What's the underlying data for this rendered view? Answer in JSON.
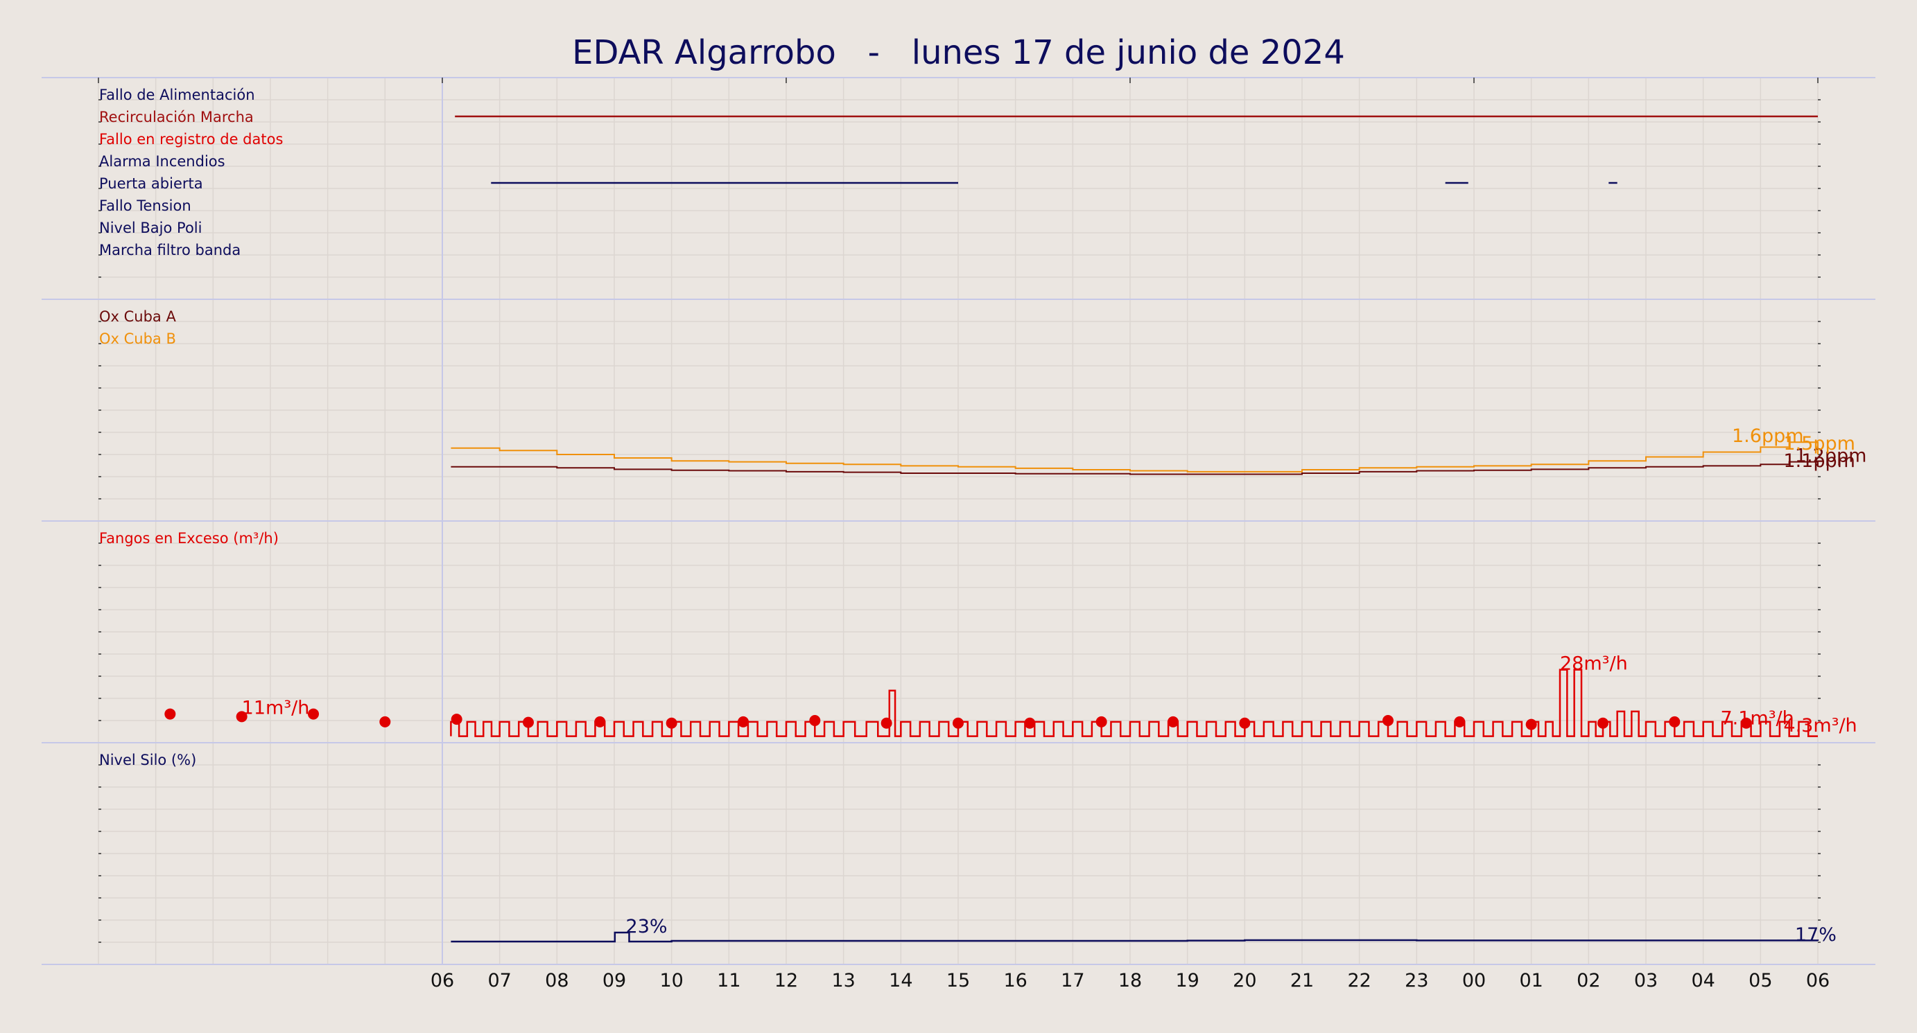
{
  "title": "EDAR Algarrobo   -   lunes 17 de junio de 2024",
  "colors": {
    "background": "#ebe6e1",
    "grid": "#dcd6d1",
    "separator": "#c6c8e8",
    "navy": "#0d0d5c",
    "darkred": "#a01010",
    "red": "#e00000",
    "maroon": "#6b0a0a",
    "orange": "#f0900a"
  },
  "chart_data": [
    {
      "type": "line",
      "panel": "states",
      "series": [
        {
          "name": "Fallo de Alimentación",
          "color": "#0d0d5c",
          "segments": []
        },
        {
          "name": "Recirculación Marcha",
          "color": "#a01010",
          "segments": [
            [
              6.22,
              30.0
            ]
          ]
        },
        {
          "name": "Fallo en registro de datos",
          "color": "#e00000",
          "segments": []
        },
        {
          "name": "Alarma Incendios",
          "color": "#0d0d5c",
          "segments": []
        },
        {
          "name": "Puerta abierta",
          "color": "#0d0d5c",
          "segments": [
            [
              6.85,
              15.0
            ],
            [
              23.5,
              23.9
            ],
            [
              26.35,
              26.5
            ]
          ]
        },
        {
          "name": "Fallo Tension",
          "color": "#0d0d5c",
          "segments": []
        },
        {
          "name": "Nivel Bajo Poli",
          "color": "#0d0d5c",
          "segments": []
        },
        {
          "name": "Marcha filtro banda",
          "color": "#0d0d5c",
          "segments": []
        }
      ]
    },
    {
      "type": "line",
      "panel": "oxygen",
      "series": [
        {
          "name": "Ox Cuba A",
          "color": "#6b0a0a",
          "x": [
            6.15,
            7,
            8,
            9,
            10,
            11,
            12,
            13,
            14,
            15,
            16,
            17,
            18,
            19,
            20,
            21,
            22,
            23,
            24,
            25,
            26,
            27,
            28,
            29,
            29.5,
            30.0
          ],
          "y": [
            1.1,
            1.1,
            1.08,
            1.05,
            1.03,
            1.02,
            1.0,
            0.99,
            0.97,
            0.97,
            0.96,
            0.96,
            0.95,
            0.95,
            0.95,
            0.97,
            1.0,
            1.02,
            1.03,
            1.05,
            1.08,
            1.1,
            1.12,
            1.15,
            1.2,
            1.1
          ]
        },
        {
          "name": "Ox Cuba B",
          "color": "#f0900a",
          "x": [
            6.15,
            7,
            8,
            9,
            10,
            11,
            12,
            13,
            14,
            15,
            16,
            17,
            18,
            19,
            20,
            21,
            22,
            23,
            24,
            25,
            26,
            27,
            28,
            29,
            29.5,
            30.0
          ],
          "y": [
            1.48,
            1.43,
            1.35,
            1.28,
            1.22,
            1.2,
            1.17,
            1.15,
            1.12,
            1.1,
            1.07,
            1.04,
            1.02,
            1.0,
            1.0,
            1.04,
            1.08,
            1.1,
            1.12,
            1.15,
            1.22,
            1.3,
            1.4,
            1.5,
            1.6,
            1.35
          ]
        }
      ],
      "annotations": [
        {
          "text": "1.6ppm",
          "x": 28.5,
          "y": 1.6,
          "color": "#f0900a"
        },
        {
          "text": "1.2ppm",
          "x": 29.6,
          "y": 1.2,
          "color": "#6b0a0a"
        },
        {
          "text": "1.5ppm",
          "x": 29.4,
          "y": 1.45,
          "color": "#f0900a"
        },
        {
          "text": "1.1ppm",
          "x": 29.4,
          "y": 1.1,
          "color": "#6b0a0a"
        }
      ]
    },
    {
      "type": "line",
      "panel": "fangos",
      "series": [
        {
          "name": "Fangos en Exceso (m³/h)",
          "color": "#e00000",
          "x": [
            6.15,
            7,
            8,
            9,
            10,
            11,
            12,
            13,
            13.8,
            14,
            15,
            16,
            17,
            18,
            19,
            20,
            21,
            22,
            23,
            24,
            25,
            25.5,
            26,
            26.5,
            27,
            28,
            29,
            30.0
          ],
          "y": [
            8,
            8,
            8,
            8,
            8,
            8,
            8,
            8,
            20,
            8,
            8,
            8,
            8,
            8,
            8,
            8,
            8,
            8,
            8,
            8,
            8,
            28,
            8,
            12,
            8,
            8,
            8,
            4.3
          ]
        },
        {
          "name": "dots",
          "color": "#e00000",
          "x": [
            1.25,
            2.5,
            3.75,
            5.0,
            6.25,
            7.5,
            8.75,
            10.0,
            11.25,
            12.5,
            13.75,
            15.0,
            16.25,
            17.5,
            18.75,
            20.0,
            22.5,
            23.75,
            25.0,
            26.25,
            27.5,
            28.75
          ],
          "y": [
            11,
            10,
            11,
            8,
            9,
            7.8,
            8,
            7.5,
            8,
            8.5,
            7.5,
            7.5,
            7.5,
            8,
            8,
            7.5,
            8.5,
            8,
            7,
            7.5,
            8,
            7.5
          ]
        }
      ],
      "annotations": [
        {
          "text": "11m³/h",
          "x": 2.5,
          "y": 11,
          "color": "#e00000"
        },
        {
          "text": "28m³/h",
          "x": 25.5,
          "y": 28,
          "color": "#e00000"
        },
        {
          "text": "7.1m³/h",
          "x": 28.3,
          "y": 7.1,
          "color": "#e00000"
        },
        {
          "text": "4.3m³/h",
          "x": 29.4,
          "y": 4.3,
          "color": "#e00000"
        }
      ]
    },
    {
      "type": "line",
      "panel": "silo",
      "series": [
        {
          "name": "Nivel Silo (%)",
          "color": "#0d0d5c",
          "x": [
            6.15,
            8,
            9.0,
            9.01,
            9.25,
            9.26,
            10,
            19,
            20,
            23,
            30.0
          ],
          "y": [
            16.5,
            16.5,
            16.5,
            23,
            23,
            16.5,
            17,
            17.2,
            17.5,
            17.3,
            17
          ]
        }
      ],
      "annotations": [
        {
          "text": "23%",
          "x": 9.2,
          "y": 23,
          "color": "#0d0d5c"
        },
        {
          "text": "17%",
          "x": 29.6,
          "y": 17,
          "color": "#0d0d5c"
        }
      ]
    }
  ],
  "x_axis": {
    "tick_labels": [
      "06",
      "07",
      "08",
      "09",
      "10",
      "11",
      "12",
      "13",
      "14",
      "15",
      "16",
      "17",
      "18",
      "19",
      "20",
      "21",
      "22",
      "23",
      "00",
      "01",
      "02",
      "03",
      "04",
      "05",
      "06"
    ],
    "range_hours": [
      0,
      30
    ]
  }
}
